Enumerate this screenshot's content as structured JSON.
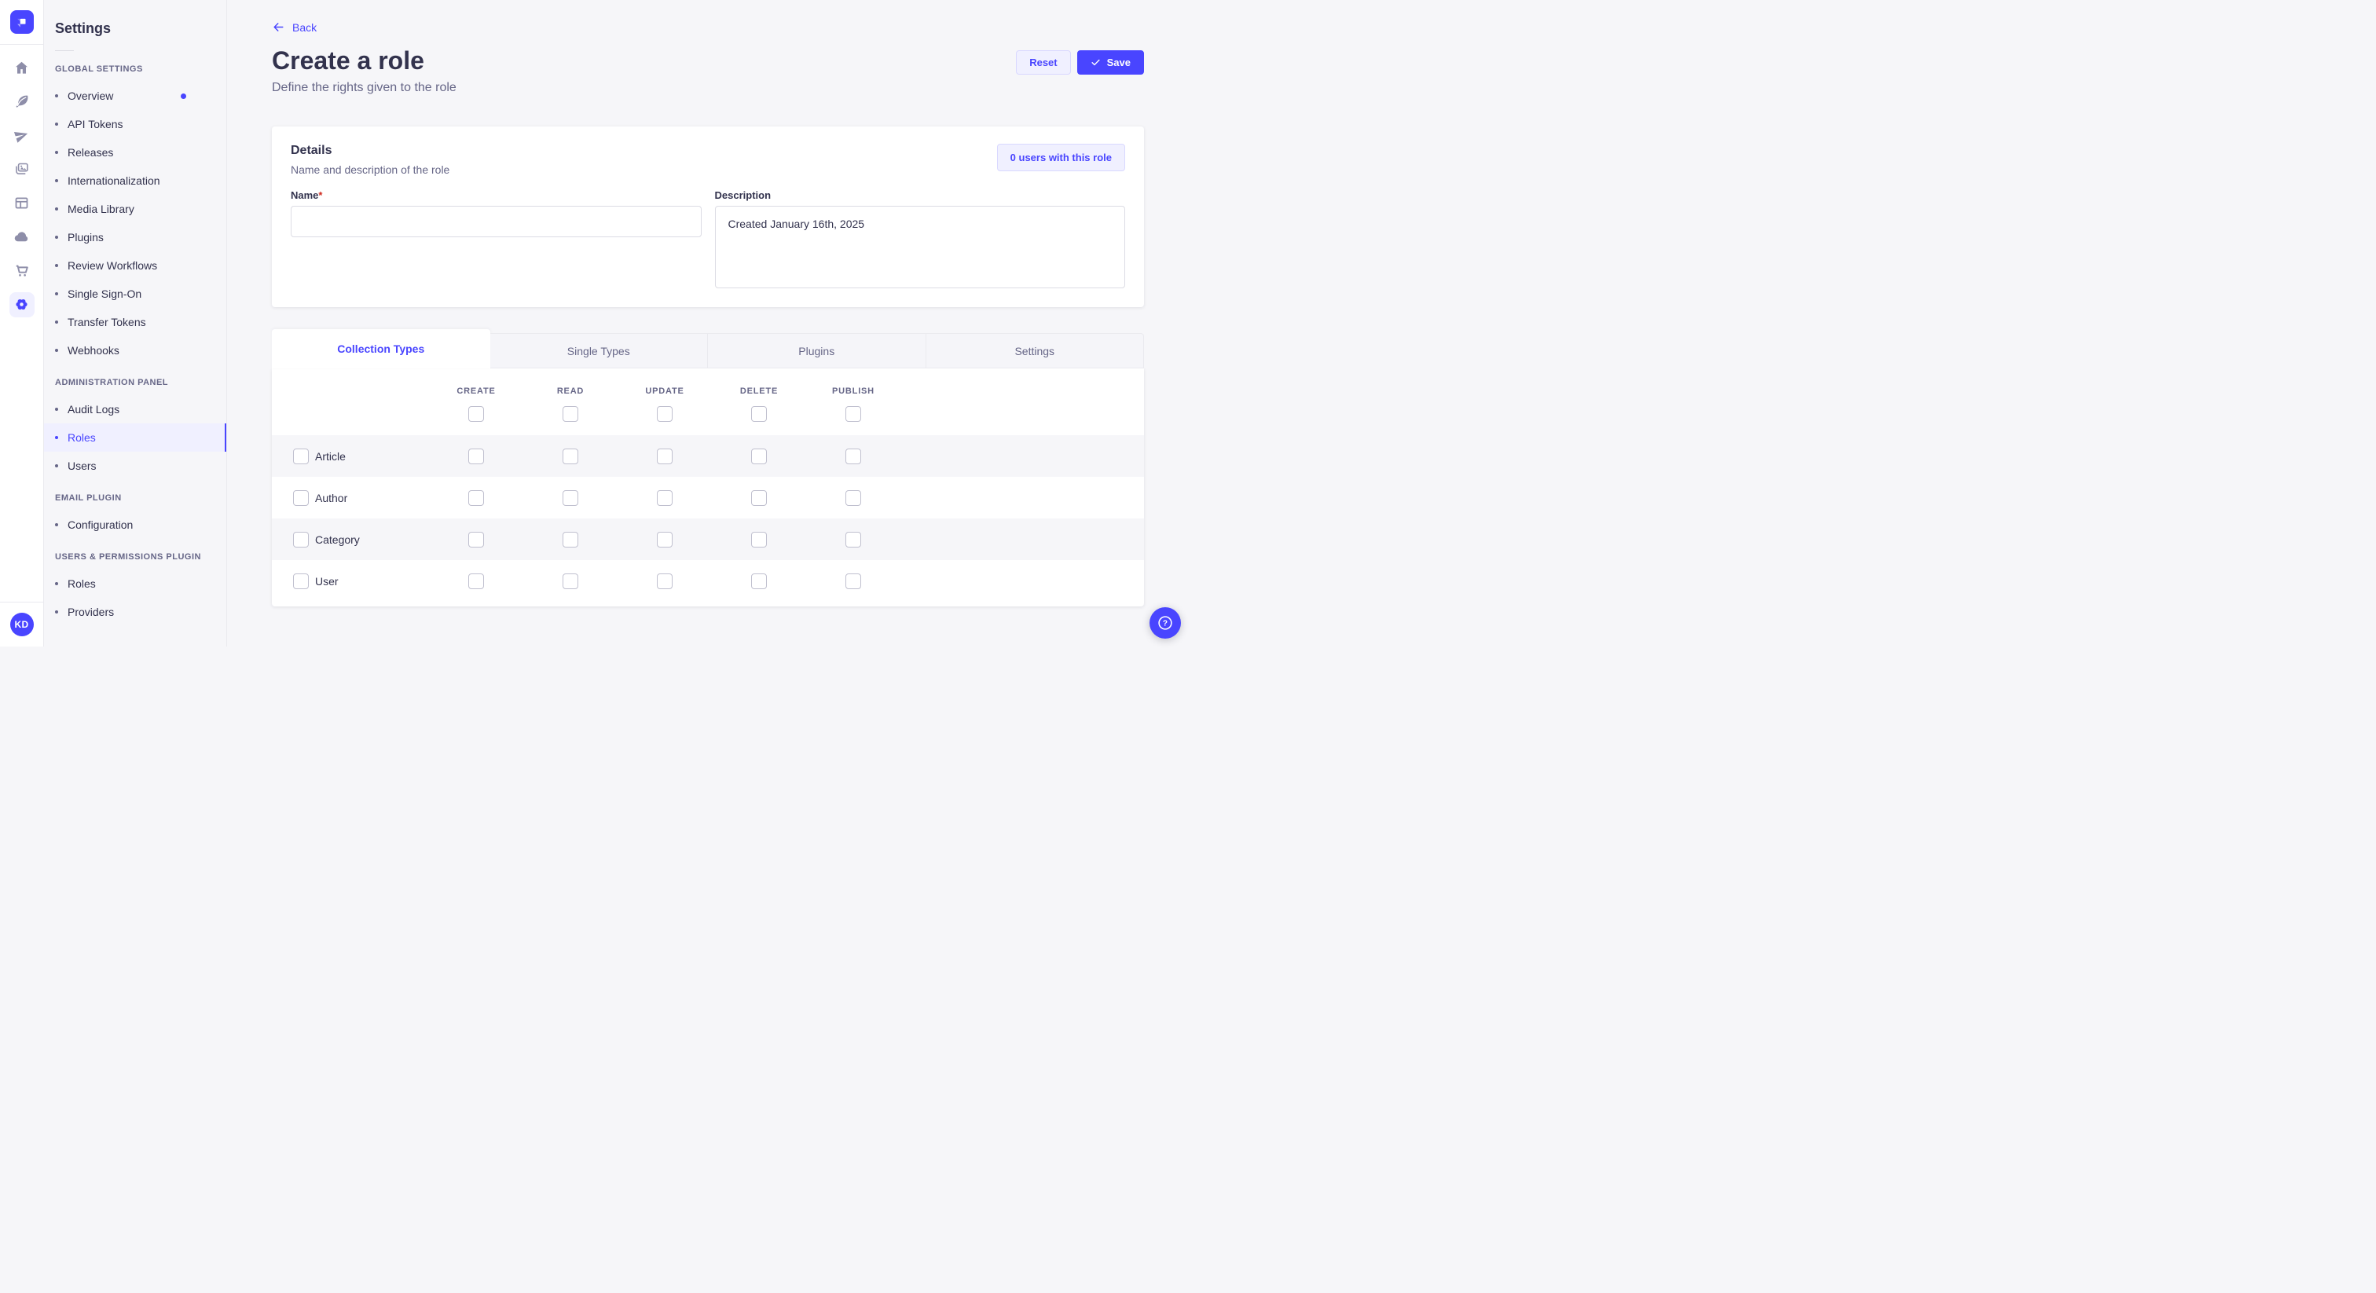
{
  "colors": {
    "primary": "#4945ff",
    "primary_light_bg": "#f0f0ff",
    "primary_border": "#d9d8ff",
    "page_background": "#f6f6f9",
    "card_background": "#ffffff",
    "text_dark": "#32324d",
    "text_muted": "#666687",
    "divider": "#eaeaef",
    "checkbox_border": "#c0c0cf",
    "required_asterisk": "#d02b20"
  },
  "rail": {
    "logo": "strapi-logo",
    "icons": [
      "home",
      "feather",
      "send",
      "media-library",
      "layout",
      "cloud",
      "cart",
      "settings-gear"
    ],
    "active_icon": "settings-gear",
    "avatar_initials": "KD"
  },
  "sidebar": {
    "title": "Settings",
    "sections": [
      {
        "label": "GLOBAL SETTINGS",
        "items": [
          {
            "label": "Overview",
            "notification_dot": true
          },
          {
            "label": "API Tokens"
          },
          {
            "label": "Releases"
          },
          {
            "label": "Internationalization"
          },
          {
            "label": "Media Library"
          },
          {
            "label": "Plugins"
          },
          {
            "label": "Review Workflows"
          },
          {
            "label": "Single Sign-On"
          },
          {
            "label": "Transfer Tokens"
          },
          {
            "label": "Webhooks"
          }
        ]
      },
      {
        "label": "ADMINISTRATION PANEL",
        "items": [
          {
            "label": "Audit Logs"
          },
          {
            "label": "Roles",
            "active": true
          },
          {
            "label": "Users"
          }
        ]
      },
      {
        "label": "EMAIL PLUGIN",
        "items": [
          {
            "label": "Configuration"
          }
        ]
      },
      {
        "label": "USERS & PERMISSIONS PLUGIN",
        "items": [
          {
            "label": "Roles"
          },
          {
            "label": "Providers"
          }
        ]
      }
    ]
  },
  "header": {
    "back_label": "Back",
    "title": "Create a role",
    "subtitle": "Define the rights given to the role",
    "reset_label": "Reset",
    "save_label": "Save"
  },
  "details": {
    "title": "Details",
    "subtitle": "Name and description of the role",
    "users_count_label": "0 users with this role",
    "name_label": "Name",
    "name_required_mark": "*",
    "name_value": "",
    "description_label": "Description",
    "description_value": "Created January 16th, 2025"
  },
  "permissions": {
    "tabs": [
      {
        "label": "Collection Types",
        "active": true
      },
      {
        "label": "Single Types"
      },
      {
        "label": "Plugins"
      },
      {
        "label": "Settings"
      }
    ],
    "columns": [
      "CREATE",
      "READ",
      "UPDATE",
      "DELETE",
      "PUBLISH"
    ],
    "rows": [
      "Article",
      "Author",
      "Category",
      "User"
    ]
  },
  "help": {
    "icon": "question-mark"
  }
}
